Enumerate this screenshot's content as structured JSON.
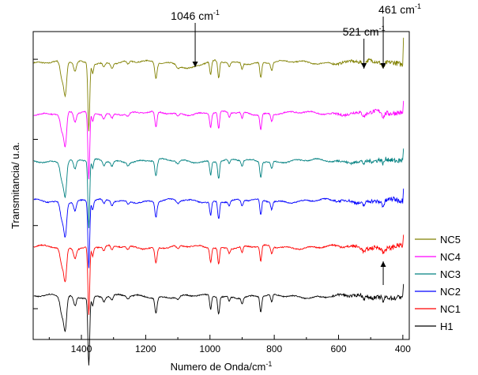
{
  "chart_data": {
    "type": "line",
    "title": "",
    "xlabel": "Numero de Onda/cm",
    "xlabel_sup": "-1",
    "ylabel": "Transmitancia/ u.a.",
    "xlim": [
      1550,
      380
    ],
    "x_reversed": true,
    "x_ticks": [
      1400,
      1200,
      1000,
      800,
      600,
      400
    ],
    "y_ticks_labeled": false,
    "grid": false,
    "legend_position": "bottom-right",
    "series": [
      {
        "name": "NC5",
        "color": "#808000",
        "baseline": 0.9
      },
      {
        "name": "NC4",
        "color": "#ff00ff",
        "baseline": 0.735
      },
      {
        "name": "NC3",
        "color": "#008080",
        "baseline": 0.58
      },
      {
        "name": "NC2",
        "color": "#0000ff",
        "baseline": 0.45
      },
      {
        "name": "NC1",
        "color": "#ff0000",
        "baseline": 0.3
      },
      {
        "name": "H1",
        "color": "#000000",
        "baseline": 0.14
      }
    ],
    "bands_cm": [
      {
        "x": 1460,
        "depth": 0.06,
        "width": 8
      },
      {
        "x": 1450,
        "depth": 0.1,
        "width": 6
      },
      {
        "x": 1420,
        "depth": 0.03,
        "width": 6
      },
      {
        "x": 1377,
        "depth": 0.22,
        "width": 4
      },
      {
        "x": 1365,
        "depth": 0.03,
        "width": 4
      },
      {
        "x": 1330,
        "depth": 0.015,
        "width": 5
      },
      {
        "x": 1305,
        "depth": 0.015,
        "width": 5
      },
      {
        "x": 1255,
        "depth": 0.01,
        "width": 5
      },
      {
        "x": 1168,
        "depth": 0.05,
        "width": 5
      },
      {
        "x": 1100,
        "depth": 0.01,
        "width": 6
      },
      {
        "x": 998,
        "depth": 0.045,
        "width": 4
      },
      {
        "x": 973,
        "depth": 0.055,
        "width": 4
      },
      {
        "x": 940,
        "depth": 0.015,
        "width": 4
      },
      {
        "x": 900,
        "depth": 0.02,
        "width": 4
      },
      {
        "x": 842,
        "depth": 0.05,
        "width": 4
      },
      {
        "x": 808,
        "depth": 0.025,
        "width": 4
      }
    ],
    "annotations": [
      {
        "text": "1046 cm",
        "sup": "-1",
        "x": 1046,
        "target_series": "NC5"
      },
      {
        "text": "521 cm",
        "sup": "-1",
        "x": 521,
        "target_series": "NC5"
      },
      {
        "text": "461 cm",
        "sup": "-1",
        "x": 461,
        "target_series": "NC5"
      },
      {
        "text": "",
        "x": 461,
        "target_series": "NC1"
      }
    ]
  }
}
